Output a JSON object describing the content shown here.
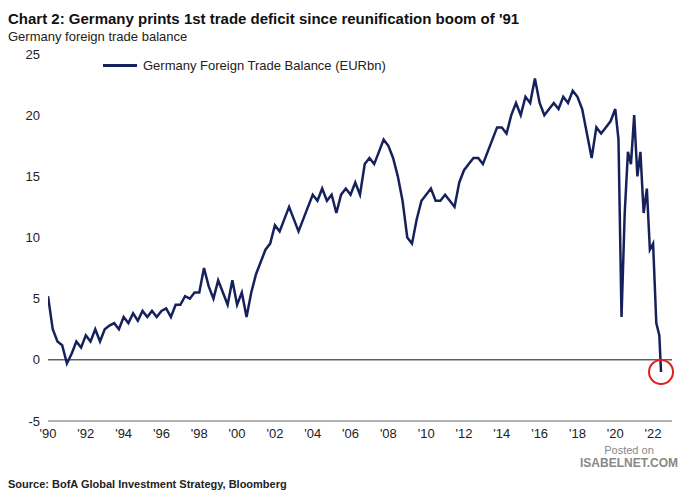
{
  "chart_data": {
    "type": "line",
    "title": "Chart 2: Germany prints 1st trade deficit since reunification boom of '91",
    "subtitle": "Germany foreign trade balance",
    "source": "Source: BofA Global Investment Strategy, Bloomberg",
    "watermark": [
      "Posted on",
      "ISABELNET.COM"
    ],
    "legend": "upper left",
    "grid": false,
    "xlim": [
      1990,
      2023
    ],
    "xticks": [
      {
        "value": 1990,
        "label": "'90"
      },
      {
        "value": 1992,
        "label": "'92"
      },
      {
        "value": 1994,
        "label": "'94"
      },
      {
        "value": 1996,
        "label": "'96"
      },
      {
        "value": 1998,
        "label": "'98"
      },
      {
        "value": 2000,
        "label": "'00"
      },
      {
        "value": 2002,
        "label": "'02"
      },
      {
        "value": 2004,
        "label": "'04"
      },
      {
        "value": 2006,
        "label": "'06"
      },
      {
        "value": 2008,
        "label": "'08"
      },
      {
        "value": 2010,
        "label": "'10"
      },
      {
        "value": 2012,
        "label": "'12"
      },
      {
        "value": 2014,
        "label": "'14"
      },
      {
        "value": 2016,
        "label": "'16"
      },
      {
        "value": 2018,
        "label": "'18"
      },
      {
        "value": 2020,
        "label": "'20"
      },
      {
        "value": 2022,
        "label": "'22"
      }
    ],
    "ylim": [
      -5,
      25
    ],
    "yticks": [
      -5,
      0,
      5,
      10,
      15,
      20,
      25
    ],
    "x": [
      1990,
      1990.25,
      1990.5,
      1990.75,
      1991,
      1991.25,
      1991.5,
      1991.75,
      1992,
      1992.25,
      1992.5,
      1992.75,
      1993,
      1993.25,
      1993.5,
      1993.75,
      1994,
      1994.25,
      1994.5,
      1994.75,
      1995,
      1995.25,
      1995.5,
      1995.75,
      1996,
      1996.25,
      1996.5,
      1996.75,
      1997,
      1997.25,
      1997.5,
      1997.75,
      1998,
      1998.25,
      1998.5,
      1998.75,
      1999,
      1999.25,
      1999.5,
      1999.75,
      2000,
      2000.25,
      2000.5,
      2000.75,
      2001,
      2001.25,
      2001.5,
      2001.75,
      2002,
      2002.25,
      2002.5,
      2002.75,
      2003,
      2003.25,
      2003.5,
      2003.75,
      2004,
      2004.25,
      2004.5,
      2004.75,
      2005,
      2005.25,
      2005.5,
      2005.75,
      2006,
      2006.25,
      2006.5,
      2006.75,
      2007,
      2007.25,
      2007.5,
      2007.75,
      2008,
      2008.25,
      2008.5,
      2008.75,
      2009,
      2009.25,
      2009.5,
      2009.75,
      2010,
      2010.25,
      2010.5,
      2010.75,
      2011,
      2011.25,
      2011.5,
      2011.75,
      2012,
      2012.25,
      2012.5,
      2012.75,
      2013,
      2013.25,
      2013.5,
      2013.75,
      2014,
      2014.25,
      2014.5,
      2014.75,
      2015,
      2015.25,
      2015.5,
      2015.75,
      2016,
      2016.25,
      2016.5,
      2016.75,
      2017,
      2017.25,
      2017.5,
      2017.75,
      2018,
      2018.25,
      2018.5,
      2018.75,
      2019,
      2019.25,
      2019.5,
      2019.75,
      2020,
      2020.17,
      2020.33,
      2020.5,
      2020.67,
      2020.83,
      2021,
      2021.17,
      2021.33,
      2021.5,
      2021.67,
      2021.83,
      2022,
      2022.17,
      2022.33,
      2022.42
    ],
    "series": [
      {
        "name": "Germany Foreign Trade Balance (EURbn)",
        "color": "#16215c",
        "values": [
          5.2,
          2.5,
          1.5,
          1.2,
          -0.3,
          0.5,
          1.5,
          1.0,
          2.0,
          1.5,
          2.5,
          1.5,
          2.5,
          2.8,
          3.0,
          2.5,
          3.5,
          3.0,
          3.8,
          3.2,
          4.0,
          3.5,
          4.0,
          3.5,
          4.0,
          4.2,
          3.5,
          4.5,
          4.5,
          5.2,
          5.0,
          5.5,
          5.5,
          7.5,
          6.0,
          5.0,
          6.5,
          5.5,
          4.5,
          6.5,
          4.5,
          5.5,
          3.5,
          5.5,
          7.0,
          8.0,
          9.0,
          9.5,
          11.0,
          10.5,
          11.5,
          12.5,
          11.5,
          10.5,
          11.5,
          12.5,
          13.5,
          13.0,
          14.0,
          13.0,
          13.5,
          12.0,
          13.5,
          14.0,
          13.5,
          14.5,
          13.5,
          16.0,
          16.5,
          16.0,
          17.0,
          18.0,
          17.5,
          16.5,
          15.0,
          13.0,
          10.0,
          9.5,
          11.5,
          13.0,
          13.5,
          14.0,
          13.0,
          13.0,
          13.5,
          13.0,
          12.5,
          14.5,
          15.5,
          16.0,
          16.5,
          16.5,
          16.0,
          17.0,
          18.0,
          19.0,
          19.0,
          18.5,
          20.0,
          21.0,
          20.0,
          21.5,
          21.0,
          23.0,
          21.0,
          20.0,
          20.5,
          21.0,
          20.5,
          21.5,
          21.0,
          22.0,
          21.5,
          20.5,
          18.5,
          16.5,
          19.0,
          18.5,
          19.0,
          19.5,
          20.5,
          18.0,
          3.5,
          12.0,
          17.0,
          16.0,
          20.0,
          15.0,
          17.0,
          12.0,
          14.0,
          9.0,
          9.5,
          3.0,
          2.0,
          -1.0
        ]
      }
    ]
  }
}
